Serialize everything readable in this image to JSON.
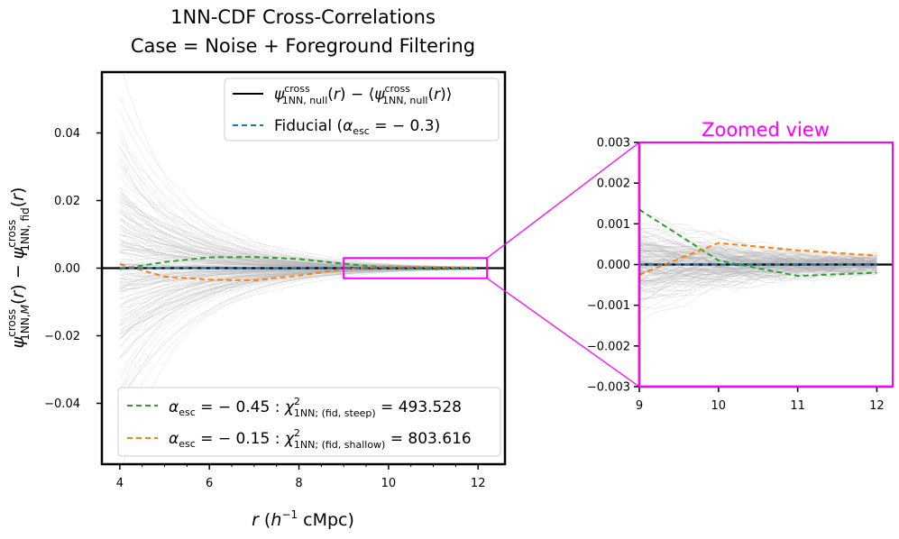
{
  "colors": {
    "null": "#000000",
    "fiducial": "#1f77b4",
    "steep": "#2ca02c",
    "shallow": "#ff7f0e",
    "zoom": "#ff00ff",
    "realizations": "#b0b0b0"
  },
  "chart_data": [
    {
      "type": "line",
      "title_line1": "1NN-CDF Cross-Correlations",
      "title_line2": "Case = Noise + Foreground Filtering",
      "xlabel": "r (h⁻¹ cMpc)",
      "ylabel": "ψ^cross_1NN,M(r) − ψ^cross_1NN,fid(r)",
      "xlim": [
        3.6,
        12.6
      ],
      "ylim": [
        -0.058,
        0.058
      ],
      "xticks": [
        "4",
        "6",
        "8",
        "10",
        "12"
      ],
      "yticks": [
        "0.04",
        "0.02",
        "0.00",
        "−0.02",
        "−0.04"
      ],
      "legend_upper": [
        "ψ^cross_1NN,null(r) − ⟨ψ^cross_1NN,null(r)⟩",
        "Fiducial (α_esc = −0.3)"
      ],
      "legend_lower": [
        "α_esc = −0.45 : χ²_1NN; (fid, steep) = 493.528",
        "α_esc = −0.15 : χ²_1NN; (fid, shallow) = 803.616"
      ],
      "series": [
        {
          "name": "α_esc = −0.45",
          "x": [
            4,
            5,
            6,
            7,
            8,
            9,
            10,
            11,
            12
          ],
          "y": [
            -0.0003,
            0.0018,
            0.0032,
            0.0033,
            0.0027,
            0.0013,
            0.0001,
            -0.0003,
            -0.0002
          ]
        },
        {
          "name": "α_esc = −0.15",
          "x": [
            4,
            5,
            6,
            7,
            8,
            9,
            10,
            11,
            12
          ],
          "y": [
            0.0012,
            -0.0025,
            -0.0034,
            -0.0036,
            -0.0022,
            -0.0003,
            0.0005,
            0.0003,
            0.0002
          ]
        },
        {
          "name": "Fiducial (α_esc = −0.3)",
          "x": [
            4,
            12
          ],
          "y": [
            0,
            0
          ]
        }
      ],
      "realizations": {
        "count": 150,
        "amplitude_at_4": 0.022,
        "amplitude_at_12": 0.0004
      }
    },
    {
      "type": "line",
      "title": "Zoomed view",
      "xlim": [
        9,
        12.2
      ],
      "ylim": [
        -0.003,
        0.003
      ],
      "xticks": [
        "9",
        "10",
        "11",
        "12"
      ],
      "yticks": [
        "0.003",
        "0.002",
        "0.001",
        "0.000",
        "−0.001",
        "−0.002",
        "−0.003"
      ],
      "series": [
        {
          "name": "α_esc = −0.45",
          "x": [
            9,
            10,
            11,
            12
          ],
          "y": [
            0.00135,
            0.0001,
            -0.00028,
            -0.0002
          ]
        },
        {
          "name": "α_esc = −0.15",
          "x": [
            9,
            10,
            11,
            12
          ],
          "y": [
            -0.00025,
            0.00053,
            0.00035,
            0.00022
          ]
        },
        {
          "name": "Fiducial (α_esc = −0.3)",
          "x": [
            9,
            12
          ],
          "y": [
            0,
            0
          ]
        }
      ]
    }
  ]
}
